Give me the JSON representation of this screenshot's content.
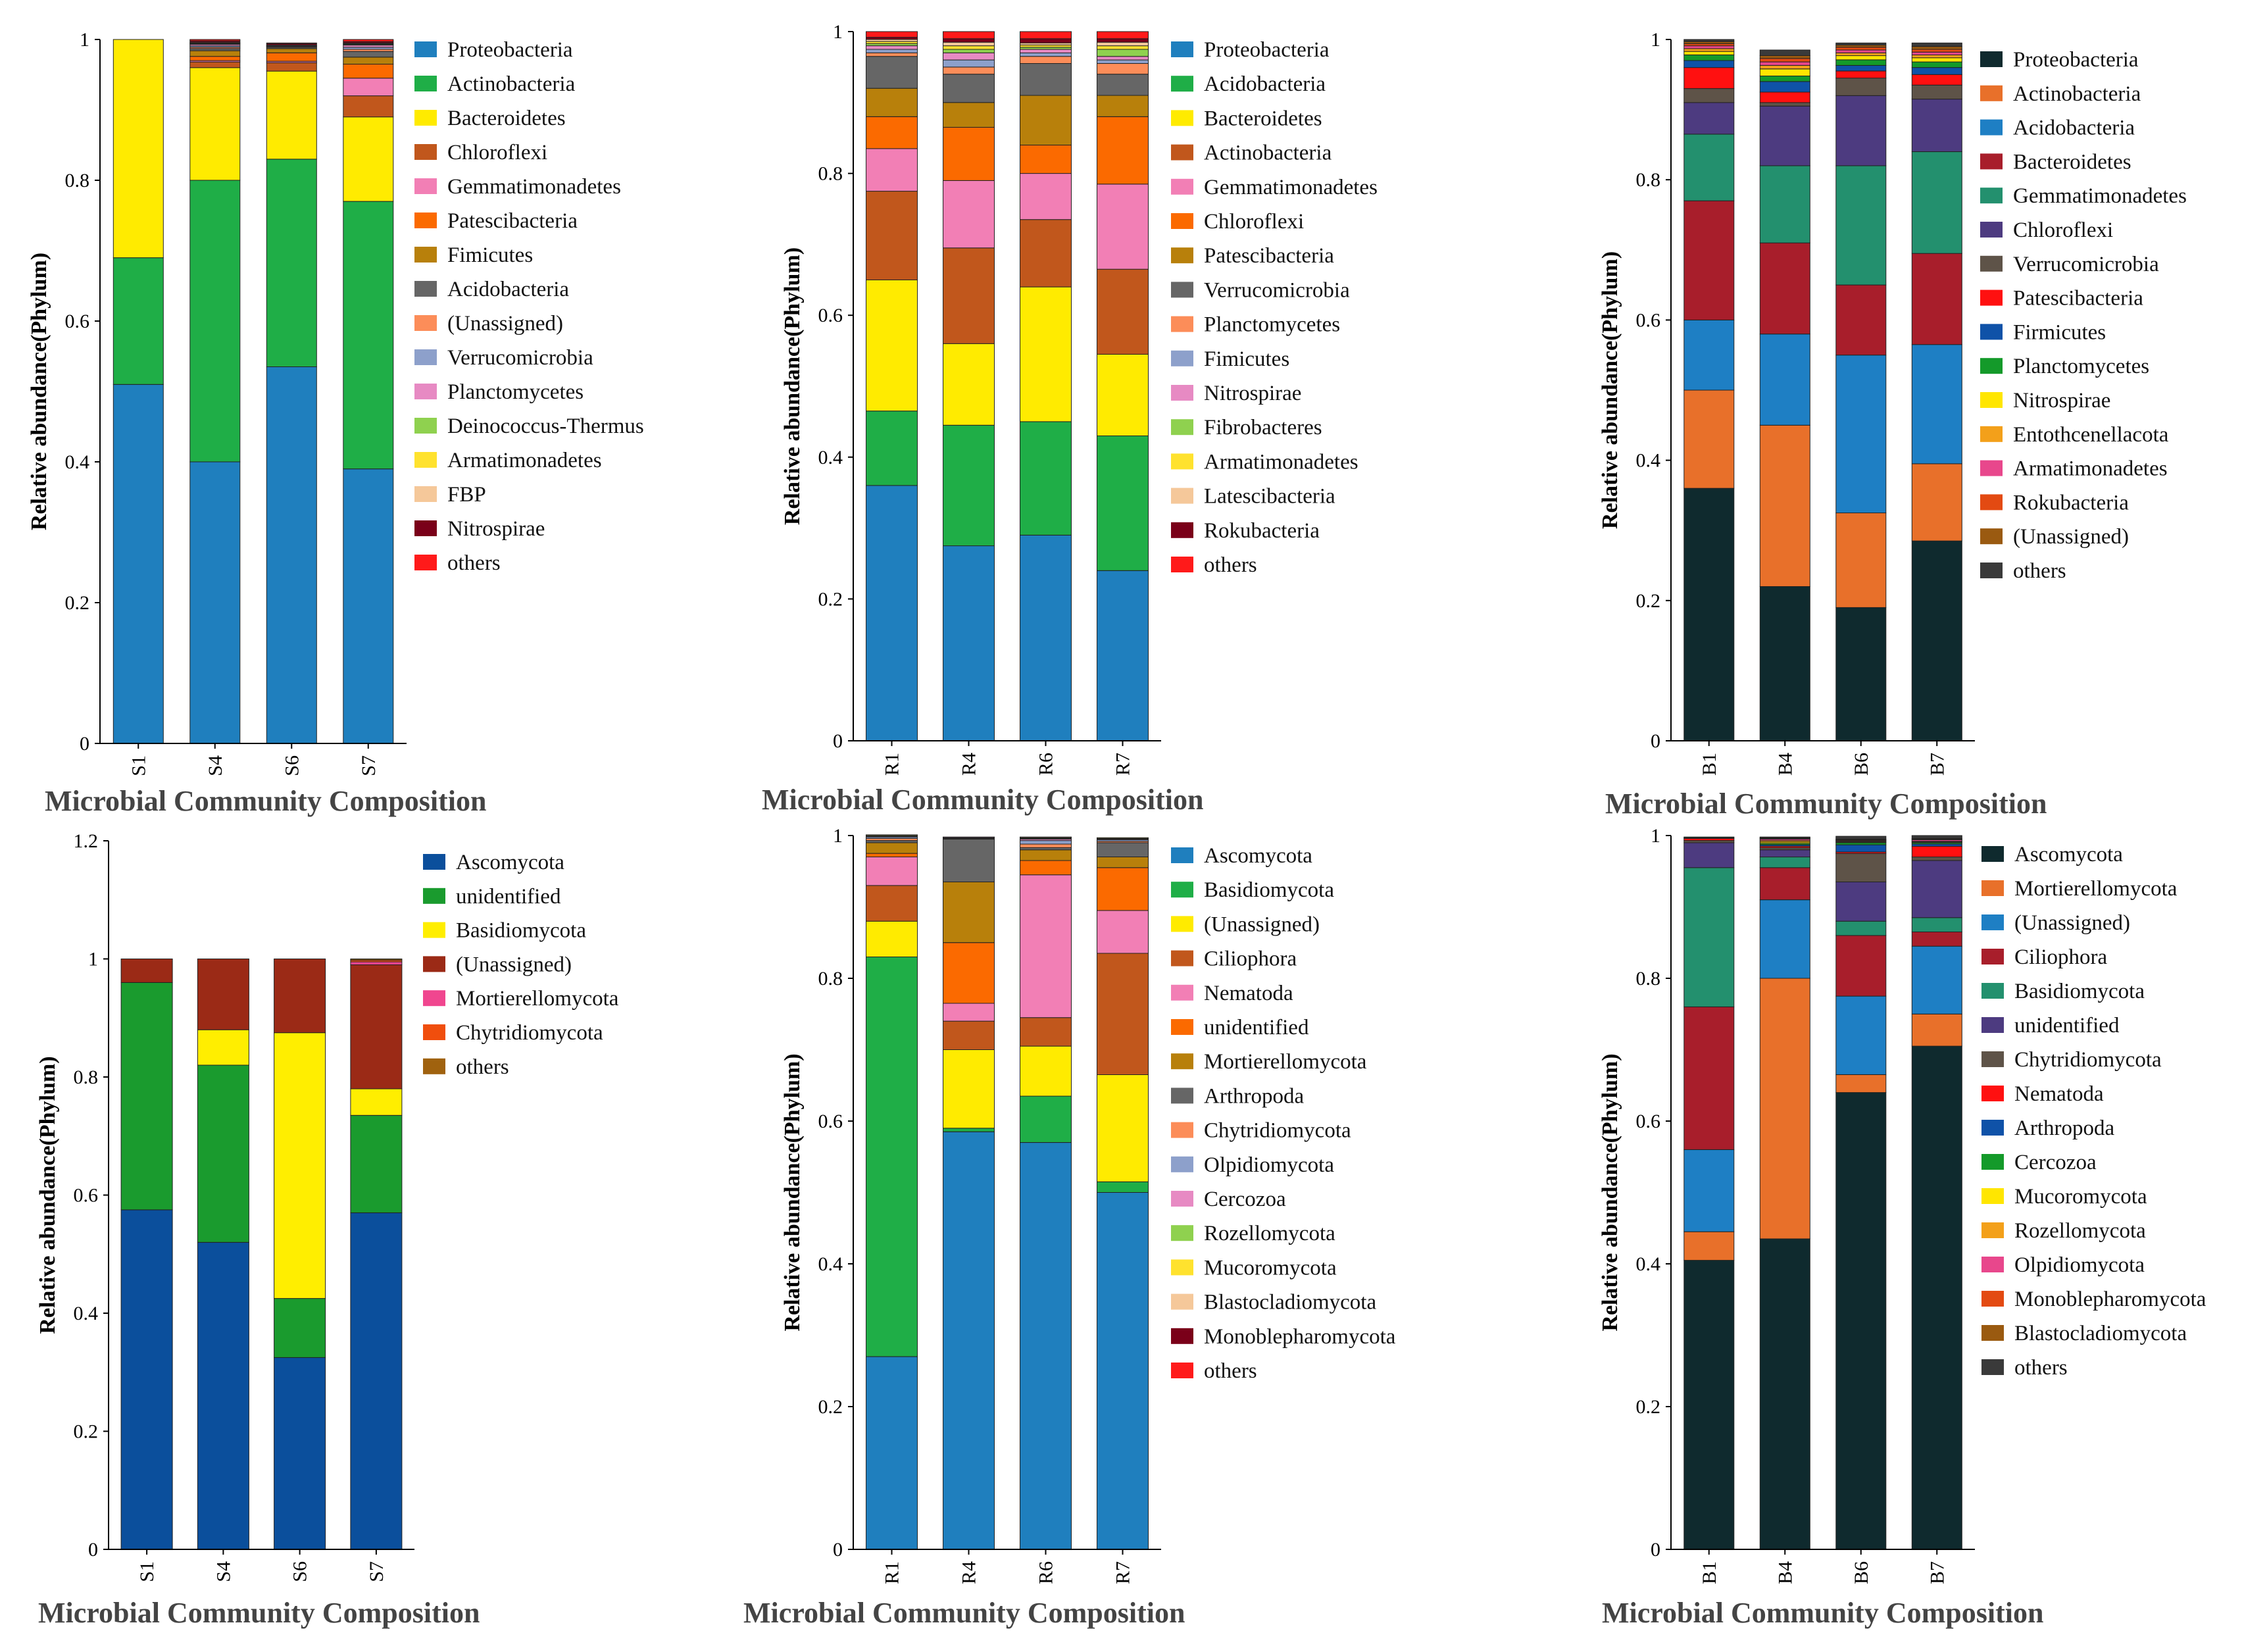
{
  "chart_data": [
    {
      "type": "bar",
      "stacked": true,
      "title": "Microbial Community Composition",
      "ylabel": "Relative abundance(Phylum)",
      "ylim": [
        0,
        1
      ],
      "yticks": [
        0,
        0.2,
        0.4,
        0.6,
        0.8,
        1
      ],
      "categories": [
        "S1",
        "S4",
        "S6",
        "S7"
      ],
      "legend_position": "right",
      "series": [
        {
          "name": "Proteobacteria",
          "color": "#1f7fbe",
          "values": [
            0.51,
            0.4,
            0.535,
            0.39
          ]
        },
        {
          "name": "Actinobacteria",
          "color": "#1fae47",
          "values": [
            0.18,
            0.4,
            0.295,
            0.38
          ]
        },
        {
          "name": "Bacteroidetes",
          "color": "#ffeb00",
          "values": [
            0.31,
            0.16,
            0.125,
            0.12
          ]
        },
        {
          "name": "Chloroflexi",
          "color": "#c1571c",
          "values": [
            0.0,
            0.008,
            0.012,
            0.03
          ]
        },
        {
          "name": "Gemmatimonadetes",
          "color": "#f27fb5",
          "values": [
            0.0,
            0.002,
            0.002,
            0.025
          ]
        },
        {
          "name": "Patescibacteria",
          "color": "#fb6a00",
          "values": [
            0.0,
            0.006,
            0.012,
            0.02
          ]
        },
        {
          "name": "Fimicutes",
          "color": "#b8800b",
          "values": [
            0.0,
            0.008,
            0.006,
            0.01
          ]
        },
        {
          "name": "Acidobacteria",
          "color": "#666666",
          "values": [
            0.0,
            0.003,
            0.002,
            0.008
          ]
        },
        {
          "name": "(Unassigned)",
          "color": "#fc8d59",
          "values": [
            0.0,
            0.002,
            0.001,
            0.003
          ]
        },
        {
          "name": "Verrucomicrobia",
          "color": "#8da0cb",
          "values": [
            0.0,
            0.002,
            0.001,
            0.003
          ]
        },
        {
          "name": "Planctomycetes",
          "color": "#e78ac3",
          "values": [
            0.0,
            0.002,
            0.001,
            0.003
          ]
        },
        {
          "name": "Deinococcus-Thermus",
          "color": "#8fd14f",
          "values": [
            0.0,
            0.001,
            0.0,
            0.001
          ]
        },
        {
          "name": "Armatimonadetes",
          "color": "#ffe22e",
          "values": [
            0.0,
            0.001,
            0.0,
            0.001
          ]
        },
        {
          "name": "FBP",
          "color": "#f5c89a",
          "values": [
            0.0,
            0.001,
            0.0,
            0.001
          ]
        },
        {
          "name": "Nitrospirae",
          "color": "#7a0019",
          "values": [
            0.0,
            0.002,
            0.002,
            0.002
          ]
        },
        {
          "name": "others",
          "color": "#ff1a1a",
          "values": [
            0.0,
            0.002,
            0.001,
            0.003
          ]
        }
      ]
    },
    {
      "type": "bar",
      "stacked": true,
      "title": "Microbial Community Composition",
      "ylabel": "Relative abundance(Phylum)",
      "ylim": [
        0,
        1
      ],
      "yticks": [
        0,
        0.2,
        0.4,
        0.6,
        0.8,
        1
      ],
      "categories": [
        "R1",
        "R4",
        "R6",
        "R7"
      ],
      "legend_position": "right",
      "series": [
        {
          "name": "Proteobacteria",
          "color": "#1f7fbe",
          "values": [
            0.36,
            0.275,
            0.29,
            0.24
          ]
        },
        {
          "name": "Acidobacteria",
          "color": "#1fae47",
          "values": [
            0.105,
            0.17,
            0.16,
            0.19
          ]
        },
        {
          "name": "Bacteroidetes",
          "color": "#ffeb00",
          "values": [
            0.185,
            0.115,
            0.19,
            0.115
          ]
        },
        {
          "name": "Actinobacteria",
          "color": "#c1571c",
          "values": [
            0.125,
            0.135,
            0.095,
            0.12
          ]
        },
        {
          "name": "Gemmatimonadetes",
          "color": "#f27fb5",
          "values": [
            0.06,
            0.095,
            0.065,
            0.12
          ]
        },
        {
          "name": "Chloroflexi",
          "color": "#fb6a00",
          "values": [
            0.045,
            0.075,
            0.04,
            0.095
          ]
        },
        {
          "name": "Patescibacteria",
          "color": "#b8800b",
          "values": [
            0.04,
            0.035,
            0.07,
            0.03
          ]
        },
        {
          "name": "Verrucomicrobia",
          "color": "#666666",
          "values": [
            0.045,
            0.04,
            0.045,
            0.03
          ]
        },
        {
          "name": "Planctomycetes",
          "color": "#fc8d59",
          "values": [
            0.005,
            0.01,
            0.01,
            0.015
          ]
        },
        {
          "name": "Fimicutes",
          "color": "#8da0cb",
          "values": [
            0.005,
            0.01,
            0.005,
            0.005
          ]
        },
        {
          "name": "Nitrospirae",
          "color": "#e78ac3",
          "values": [
            0.005,
            0.01,
            0.005,
            0.005
          ]
        },
        {
          "name": "Fibrobacteres",
          "color": "#8fd14f",
          "values": [
            0.003,
            0.005,
            0.003,
            0.01
          ]
        },
        {
          "name": "Armatimonadetes",
          "color": "#ffe22e",
          "values": [
            0.003,
            0.005,
            0.003,
            0.005
          ]
        },
        {
          "name": "Latescibacteria",
          "color": "#f5c89a",
          "values": [
            0.003,
            0.005,
            0.003,
            0.005
          ]
        },
        {
          "name": "Rokubacteria",
          "color": "#7a0019",
          "values": [
            0.003,
            0.005,
            0.006,
            0.005
          ]
        },
        {
          "name": "others",
          "color": "#ff1a1a",
          "values": [
            0.008,
            0.01,
            0.01,
            0.01
          ]
        }
      ]
    },
    {
      "type": "bar",
      "stacked": true,
      "title": "Microbial Community Composition",
      "ylabel": "Relative abundance(Phylum)",
      "ylim": [
        0,
        1
      ],
      "yticks": [
        0,
        0.2,
        0.4,
        0.6,
        0.8,
        1
      ],
      "categories": [
        "B1",
        "B4",
        "B6",
        "B7"
      ],
      "legend_position": "right",
      "series": [
        {
          "name": "Proteobacteria",
          "color": "#0f2a2e",
          "values": [
            0.36,
            0.22,
            0.19,
            0.285
          ]
        },
        {
          "name": "Actinobacteria",
          "color": "#e8702a",
          "values": [
            0.14,
            0.23,
            0.135,
            0.11
          ]
        },
        {
          "name": "Acidobacteria",
          "color": "#1e7fc4",
          "values": [
            0.1,
            0.13,
            0.225,
            0.17
          ]
        },
        {
          "name": "Bacteroidetes",
          "color": "#a81e2b",
          "values": [
            0.17,
            0.13,
            0.1,
            0.13
          ]
        },
        {
          "name": "Gemmatimonadetes",
          "color": "#23906e",
          "values": [
            0.095,
            0.11,
            0.17,
            0.145
          ]
        },
        {
          "name": "Chloroflexi",
          "color": "#4d3b80",
          "values": [
            0.045,
            0.085,
            0.1,
            0.075
          ]
        },
        {
          "name": "Verrucomicrobia",
          "color": "#5e5348",
          "values": [
            0.02,
            0.005,
            0.025,
            0.02
          ]
        },
        {
          "name": "Patescibacteria",
          "color": "#ff1010",
          "values": [
            0.03,
            0.015,
            0.01,
            0.015
          ]
        },
        {
          "name": "Firmicutes",
          "color": "#0f52a8",
          "values": [
            0.01,
            0.015,
            0.008,
            0.01
          ]
        },
        {
          "name": "Planctomycetes",
          "color": "#149a2a",
          "values": [
            0.008,
            0.008,
            0.008,
            0.008
          ]
        },
        {
          "name": "Nitrospirae",
          "color": "#ffe600",
          "values": [
            0.005,
            0.01,
            0.006,
            0.006
          ]
        },
        {
          "name": "Entothcenellacota",
          "color": "#f3a01a",
          "values": [
            0.004,
            0.005,
            0.004,
            0.004
          ]
        },
        {
          "name": "Armatimonadetes",
          "color": "#e8478c",
          "values": [
            0.004,
            0.005,
            0.004,
            0.004
          ]
        },
        {
          "name": "Rokubacteria",
          "color": "#e34a12",
          "values": [
            0.003,
            0.005,
            0.004,
            0.004
          ]
        },
        {
          "name": "(Unassigned)",
          "color": "#9a5a10",
          "values": [
            0.003,
            0.004,
            0.003,
            0.004
          ]
        },
        {
          "name": "others",
          "color": "#3a3a3a",
          "values": [
            0.003,
            0.008,
            0.003,
            0.005
          ]
        }
      ]
    },
    {
      "type": "bar",
      "stacked": true,
      "title": "Microbial Community Composition",
      "ylabel": "Relative abundance(Phylum)",
      "ylim": [
        0,
        1.2
      ],
      "yticks": [
        0,
        0.2,
        0.4,
        0.6,
        0.8,
        1,
        1.2
      ],
      "categories": [
        "S1",
        "S4",
        "S6",
        "S7"
      ],
      "legend_position": "right",
      "series": [
        {
          "name": "Ascomycota",
          "color": "#0b4f9c",
          "values": [
            0.575,
            0.52,
            0.325,
            0.57
          ]
        },
        {
          "name": "unidentified",
          "color": "#1a9b2e",
          "values": [
            0.385,
            0.3,
            0.1,
            0.165
          ]
        },
        {
          "name": "Basidiomycota",
          "color": "#ffee00",
          "values": [
            0.0,
            0.06,
            0.45,
            0.045
          ]
        },
        {
          "name": "(Unassigned)",
          "color": "#9b2a16",
          "values": [
            0.04,
            0.12,
            0.125,
            0.21
          ]
        },
        {
          "name": "Mortierellomycota",
          "color": "#f0468f",
          "values": [
            0.0,
            0.0,
            0.0,
            0.005
          ]
        },
        {
          "name": "Chytridiomycota",
          "color": "#f04e0d",
          "values": [
            0.0,
            0.0,
            0.0,
            0.003
          ]
        },
        {
          "name": "others",
          "color": "#a0620e",
          "values": [
            0.0,
            0.0,
            0.0,
            0.002
          ]
        }
      ]
    },
    {
      "type": "bar",
      "stacked": true,
      "title": "Microbial Community Composition",
      "ylabel": "Relative abundance(Phylum)",
      "ylim": [
        0,
        1
      ],
      "yticks": [
        0,
        0.2,
        0.4,
        0.6,
        0.8,
        1
      ],
      "categories": [
        "R1",
        "R4",
        "R6",
        "R7"
      ],
      "legend_position": "right",
      "series": [
        {
          "name": "Ascomycota",
          "color": "#1f7fbe",
          "values": [
            0.27,
            0.585,
            0.57,
            0.5
          ]
        },
        {
          "name": "Basidiomycota",
          "color": "#1fae47",
          "values": [
            0.56,
            0.005,
            0.065,
            0.015
          ]
        },
        {
          "name": "(Unassigned)",
          "color": "#ffeb00",
          "values": [
            0.05,
            0.11,
            0.07,
            0.15
          ]
        },
        {
          "name": "Ciliophora",
          "color": "#c1571c",
          "values": [
            0.05,
            0.04,
            0.04,
            0.17
          ]
        },
        {
          "name": "Nematoda",
          "color": "#f27fb5",
          "values": [
            0.04,
            0.025,
            0.2,
            0.06
          ]
        },
        {
          "name": "unidentified",
          "color": "#fb6a00",
          "values": [
            0.005,
            0.085,
            0.02,
            0.06
          ]
        },
        {
          "name": "Mortierellomycota",
          "color": "#b8800b",
          "values": [
            0.015,
            0.085,
            0.015,
            0.015
          ]
        },
        {
          "name": "Arthropoda",
          "color": "#666666",
          "values": [
            0.003,
            0.06,
            0.003,
            0.02
          ]
        },
        {
          "name": "Chytridiomycota",
          "color": "#fc8d59",
          "values": [
            0.003,
            0.001,
            0.005,
            0.002
          ]
        },
        {
          "name": "Olpidiomycota",
          "color": "#8da0cb",
          "values": [
            0.002,
            0.001,
            0.005,
            0.002
          ]
        },
        {
          "name": "Cercozoa",
          "color": "#e78ac3",
          "values": [
            0.001,
            0.001,
            0.002,
            0.001
          ]
        },
        {
          "name": "Rozellomycota",
          "color": "#8fd14f",
          "values": [
            0.001,
            0.0,
            0.001,
            0.001
          ]
        },
        {
          "name": "Mucoromycota",
          "color": "#ffe22e",
          "values": [
            0.001,
            0.0,
            0.001,
            0.001
          ]
        },
        {
          "name": "Blastocladiomycota",
          "color": "#f5c89a",
          "values": [
            0.0,
            0.0,
            0.001,
            0.0
          ]
        },
        {
          "name": "Monoblepharomycota",
          "color": "#7a0019",
          "values": [
            0.0,
            0.0,
            0.0,
            0.0
          ]
        },
        {
          "name": "others",
          "color": "#ff1a1a",
          "values": [
            0.0,
            0.0,
            0.0,
            0.0
          ]
        }
      ]
    },
    {
      "type": "bar",
      "stacked": true,
      "title": "Microbial Community Composition",
      "ylabel": "Relative abundance(Phylum)",
      "ylim": [
        0,
        1
      ],
      "yticks": [
        0,
        0.2,
        0.4,
        0.6,
        0.8,
        1
      ],
      "categories": [
        "B1",
        "B4",
        "B6",
        "B7"
      ],
      "legend_position": "right",
      "series": [
        {
          "name": "Ascomycota",
          "color": "#0f2a2e",
          "values": [
            0.405,
            0.435,
            0.64,
            0.705
          ]
        },
        {
          "name": "Mortierellomycota",
          "color": "#e8702a",
          "values": [
            0.04,
            0.365,
            0.025,
            0.045
          ]
        },
        {
          "name": "(Unassigned)",
          "color": "#1e7fc4",
          "values": [
            0.115,
            0.11,
            0.11,
            0.095
          ]
        },
        {
          "name": "Ciliophora",
          "color": "#a81e2b",
          "values": [
            0.2,
            0.045,
            0.085,
            0.02
          ]
        },
        {
          "name": "Basidiomycota",
          "color": "#23906e",
          "values": [
            0.195,
            0.015,
            0.02,
            0.02
          ]
        },
        {
          "name": "unidentified",
          "color": "#4d3b80",
          "values": [
            0.035,
            0.01,
            0.055,
            0.08
          ]
        },
        {
          "name": "Chytridiomycota",
          "color": "#5e5348",
          "values": [
            0.003,
            0.003,
            0.04,
            0.005
          ]
        },
        {
          "name": "Nematoda",
          "color": "#ff1010",
          "values": [
            0.003,
            0.002,
            0.002,
            0.015
          ]
        },
        {
          "name": "Arthropoda",
          "color": "#0f52a8",
          "values": [
            0.001,
            0.002,
            0.01,
            0.003
          ]
        },
        {
          "name": "Cercozoa",
          "color": "#149a2a",
          "values": [
            0.001,
            0.002,
            0.003,
            0.002
          ]
        },
        {
          "name": "Mucoromycota",
          "color": "#ffe600",
          "values": [
            0.0,
            0.002,
            0.001,
            0.001
          ]
        },
        {
          "name": "Rozellomycota",
          "color": "#f3a01a",
          "values": [
            0.0,
            0.002,
            0.001,
            0.001
          ]
        },
        {
          "name": "Olpidiomycota",
          "color": "#e8478c",
          "values": [
            0.0,
            0.002,
            0.001,
            0.002
          ]
        },
        {
          "name": "Monoblepharomycota",
          "color": "#e34a12",
          "values": [
            0.0,
            0.001,
            0.001,
            0.001
          ]
        },
        {
          "name": "Blastocladiomycota",
          "color": "#9a5a10",
          "values": [
            0.0,
            0.001,
            0.001,
            0.001
          ]
        },
        {
          "name": "others",
          "color": "#3a3a3a",
          "values": [
            0.0,
            0.001,
            0.004,
            0.004
          ]
        }
      ]
    }
  ]
}
